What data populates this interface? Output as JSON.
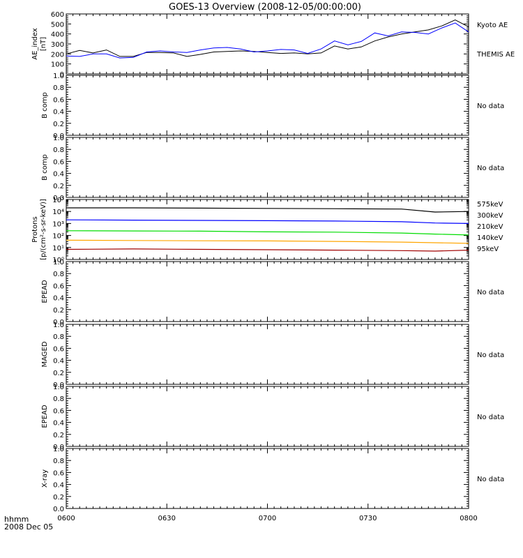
{
  "title": "GOES-13 Overview (2008-12-05/00:00:00)",
  "time_axis": {
    "label_line1": "hhmm",
    "label_line2": "2008 Dec 05",
    "ticks": [
      "0600",
      "0630",
      "0700",
      "0730",
      "0800"
    ]
  },
  "colors": {
    "kyoto": "#000000",
    "themis": "#0000ff",
    "p575": "#a00000",
    "p300": "#ffa500",
    "p210": "#00dd00",
    "p140": "#0000ff",
    "p95": "#000000"
  },
  "chart_data": [
    {
      "type": "line",
      "ylabel": [
        "AE_index",
        "[nT]"
      ],
      "ylim": [
        0,
        600
      ],
      "yticks": [
        "0",
        "100",
        "200",
        "300",
        "400",
        "500",
        "600"
      ],
      "x": [
        "06:00",
        "06:04",
        "06:08",
        "06:12",
        "06:16",
        "06:20",
        "06:24",
        "06:28",
        "06:32",
        "06:36",
        "06:40",
        "06:44",
        "06:48",
        "06:52",
        "06:56",
        "07:00",
        "07:04",
        "07:08",
        "07:12",
        "07:16",
        "07:20",
        "07:24",
        "07:28",
        "07:32",
        "07:36",
        "07:40",
        "07:44",
        "07:48",
        "07:52",
        "07:56",
        "08:00"
      ],
      "series": [
        {
          "name": "Kyoto AE",
          "color_key": "kyoto",
          "values": [
            200,
            235,
            210,
            240,
            175,
            175,
            215,
            215,
            210,
            175,
            195,
            220,
            225,
            230,
            225,
            215,
            205,
            210,
            200,
            210,
            280,
            250,
            270,
            330,
            370,
            400,
            420,
            440,
            480,
            540,
            470
          ]
        },
        {
          "name": "THEMIS AE",
          "color_key": "themis",
          "values": [
            180,
            175,
            200,
            200,
            160,
            165,
            220,
            230,
            220,
            215,
            240,
            260,
            265,
            250,
            220,
            230,
            245,
            240,
            205,
            250,
            330,
            290,
            325,
            410,
            380,
            420,
            415,
            400,
            460,
            510,
            420
          ]
        }
      ]
    },
    {
      "type": "line",
      "ylabel": [
        "B comp"
      ],
      "ylim": [
        0,
        1
      ],
      "yticks": [
        "0.0",
        "0.2",
        "0.4",
        "0.6",
        "0.8",
        "1.0"
      ],
      "status": "No data"
    },
    {
      "type": "line",
      "ylabel": [
        "B comp"
      ],
      "ylim": [
        0,
        1
      ],
      "yticks": [
        "0.0",
        "0.2",
        "0.4",
        "0.6",
        "0.8",
        "1.0"
      ],
      "status": "No data"
    },
    {
      "type": "line",
      "ylabel": [
        "Protons",
        "[p/(cm²-s-sr-keV)]"
      ],
      "ylog": true,
      "ylim": [
        1,
        100000
      ],
      "yticks": [
        "10⁰",
        "10¹",
        "10²",
        "10³",
        "10⁴",
        "10⁵"
      ],
      "x": [
        "06:00",
        "06:20",
        "06:40",
        "07:00",
        "07:20",
        "07:40",
        "07:50",
        "08:00"
      ],
      "series": [
        {
          "name": "575keV",
          "color_key": "p575",
          "values": [
            7,
            7.5,
            7,
            6.5,
            6,
            5.5,
            5,
            6
          ]
        },
        {
          "name": "300keV",
          "color_key": "p300",
          "values": [
            40,
            38,
            36,
            35,
            32,
            28,
            25,
            22
          ]
        },
        {
          "name": "210keV",
          "color_key": "p210",
          "values": [
            250,
            240,
            230,
            200,
            190,
            160,
            130,
            110
          ]
        },
        {
          "name": "140keV",
          "color_key": "p140",
          "values": [
            2000,
            1900,
            1800,
            1700,
            1600,
            1400,
            1100,
            1000
          ]
        },
        {
          "name": "95keV",
          "color_key": "p95",
          "values": [
            20000,
            20000,
            19000,
            18000,
            17000,
            16000,
            9000,
            10000
          ]
        }
      ]
    },
    {
      "type": "line",
      "ylabel": [
        "EPEAD"
      ],
      "ylim": [
        0,
        1
      ],
      "yticks": [
        "0.0",
        "0.2",
        "0.4",
        "0.6",
        "0.8",
        "1.0"
      ],
      "status": "No data"
    },
    {
      "type": "line",
      "ylabel": [
        "MAGED"
      ],
      "ylim": [
        0,
        1
      ],
      "yticks": [
        "0.0",
        "0.2",
        "0.4",
        "0.6",
        "0.8",
        "1.0"
      ],
      "status": "No data"
    },
    {
      "type": "line",
      "ylabel": [
        "EPEAD"
      ],
      "ylim": [
        0,
        1
      ],
      "yticks": [
        "0.0",
        "0.2",
        "0.4",
        "0.6",
        "0.8",
        "1.0"
      ],
      "status": "No data"
    },
    {
      "type": "line",
      "ylabel": [
        "X-ray"
      ],
      "ylim": [
        0,
        1
      ],
      "yticks": [
        "0.0",
        "0.2",
        "0.4",
        "0.6",
        "0.8",
        "1.0"
      ],
      "status": "No data"
    }
  ]
}
